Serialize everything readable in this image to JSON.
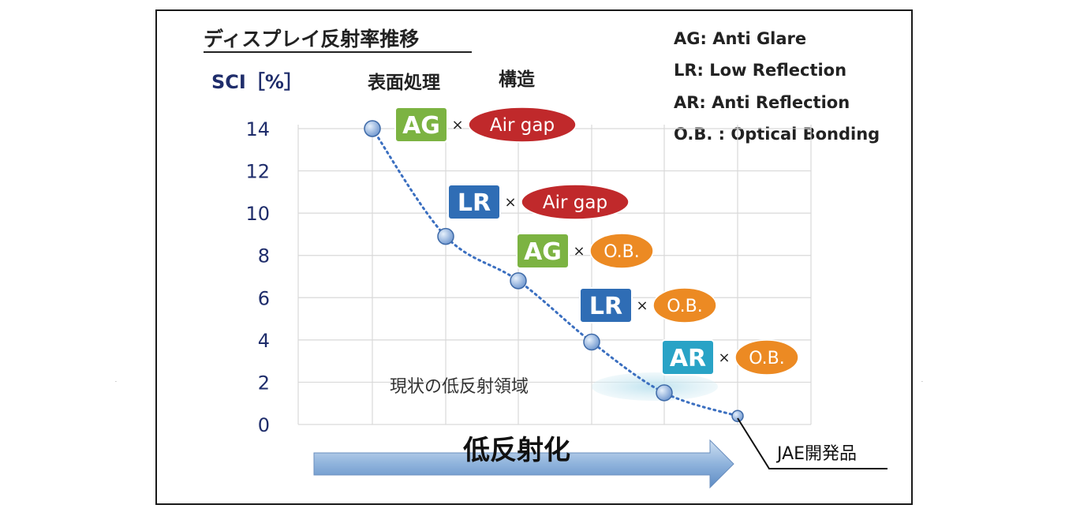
{
  "chart_data": {
    "type": "scatter",
    "title": "ディスプレイ反射率推移",
    "ylabel": "SCI［%］",
    "ylim": [
      0,
      14
    ],
    "yticks": [
      "0",
      "2",
      "4",
      "6",
      "8",
      "10",
      "12",
      "14"
    ],
    "grid": true,
    "column_headers": [
      "表面処理",
      "構造"
    ],
    "points": [
      {
        "y": 14,
        "surface": "AG",
        "structure": "Air gap"
      },
      {
        "y": 8.9,
        "surface": "LR",
        "structure": "Air gap"
      },
      {
        "y": 6.8,
        "surface": "AG",
        "structure": "O.B."
      },
      {
        "y": 3.9,
        "surface": "LR",
        "structure": "O.B."
      },
      {
        "y": 1.5,
        "surface": "AR",
        "structure": "O.B."
      },
      {
        "y": 0.4
      }
    ],
    "legend": [
      "AG: Anti Glare",
      "LR: Low Reflection",
      "AR: Anti Reflection",
      "O.B. : Optical Bonding"
    ],
    "annotations": {
      "low_reflection_region": "現状の低反射領域",
      "arrow": "低反射化",
      "product": "JAE開発品"
    },
    "times_sign": "×",
    "colors": {
      "AG": "#7cb342",
      "LR": "#2f6db5",
      "AR": "#29a3c6",
      "Air gap": "#c0292b",
      "O.B.": "#ec8a23",
      "point": "#7fa7dc",
      "curve": "#3b6fc0",
      "axis_text": "#1f2d6b"
    }
  }
}
